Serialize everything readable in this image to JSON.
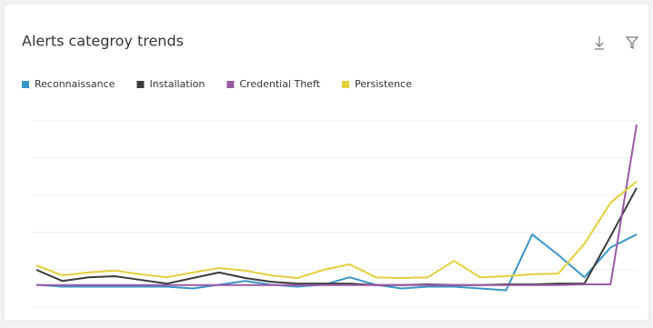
{
  "chart_data": {
    "type": "line",
    "title": "Alerts categroy trends",
    "categories": [
      null,
      null,
      null,
      null,
      null,
      null,
      null,
      null,
      null,
      null,
      null,
      null,
      null,
      null,
      null,
      null,
      null,
      null,
      null,
      null,
      null,
      null,
      null,
      null
    ],
    "series": [
      {
        "name": "Reconnaissance",
        "color": "#3a96c8",
        "values": [
          6,
          5.5,
          5.5,
          5.5,
          5.5,
          5.5,
          5,
          6,
          7,
          6,
          5.5,
          6,
          8,
          6,
          5,
          5.5,
          5.5,
          5,
          4.5,
          19.5,
          14,
          8,
          16,
          19.5
        ]
      },
      {
        "name": "Installation",
        "color": "#3b3b3b",
        "values": [
          10,
          7,
          8,
          8.3,
          7.3,
          6.3,
          7.8,
          9.3,
          7.8,
          6.8,
          6.3,
          6.3,
          6.3,
          5.9,
          5.9,
          6.1,
          5.9,
          5.9,
          6.1,
          6.1,
          6.3,
          6.3,
          19,
          32
        ]
      },
      {
        "name": "Credential Theft",
        "color": "#9b59a6",
        "values": [
          5.9,
          5.9,
          5.9,
          5.9,
          5.9,
          5.9,
          5.9,
          5.9,
          5.9,
          5.9,
          5.9,
          5.9,
          5.9,
          5.9,
          5.9,
          5.9,
          5.9,
          5.9,
          5.9,
          5.9,
          5.9,
          6.1,
          6.1,
          49
        ]
      },
      {
        "name": "Persistence",
        "color": "#e4cf3a",
        "values": [
          11.2,
          8.5,
          9.3,
          9.8,
          8.8,
          8,
          9.3,
          10.5,
          9.8,
          8.5,
          7.8,
          10,
          11.5,
          8,
          7.8,
          8,
          12.4,
          8,
          8.3,
          8.8,
          9,
          17,
          28,
          33.7
        ]
      }
    ],
    "ylim": [
      0,
      50
    ],
    "yticks": [
      0,
      10,
      20,
      30,
      40,
      50
    ],
    "grid": true
  }
}
